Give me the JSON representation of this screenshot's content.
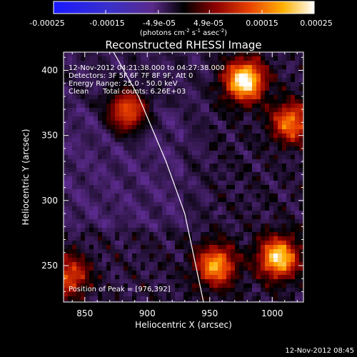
{
  "colorbar": {
    "ticks": [
      "-0.00025",
      "-0.00015",
      "-4.9e-05",
      "4.9e-05",
      "0.00015",
      "0.00025"
    ],
    "units_main": "(photons cm",
    "units_sup1": "-2",
    "units_mid1": " s",
    "units_sup2": "-1",
    "units_mid2": " asec",
    "units_sup3": "-2",
    "units_end": ")",
    "range": [
      -0.00025,
      0.00025
    ]
  },
  "chart_data": {
    "type": "heatmap",
    "title": "Reconstructed RHESSI Image",
    "xlabel": "Heliocentric X (arcsec)",
    "ylabel": "Heliocentric Y (arcsec)",
    "xlim": [
      833,
      1025
    ],
    "ylim": [
      222,
      414
    ],
    "xticks": [
      850,
      900,
      950,
      1000
    ],
    "yticks": [
      250,
      300,
      350,
      400
    ],
    "annotations": [
      "12-Nov-2012 04:21:38.000 to 04:27:38.000",
      "Detectors: 3F 5F 6F 7F 8F 9F, Att 0",
      "Energy Range: 25.0 - 50.0 keV",
      "Clean",
      "Total counts: 6.26E+03",
      "Position of Peak = [976,392]"
    ],
    "peak": [
      976,
      392
    ],
    "hot_sources": [
      {
        "x": 978,
        "y": 392,
        "value": 0.00025
      },
      {
        "x": 1005,
        "y": 256,
        "value": 0.00022
      },
      {
        "x": 955,
        "y": 250,
        "value": 0.00018
      },
      {
        "x": 1015,
        "y": 360,
        "value": 0.00016
      },
      {
        "x": 884,
        "y": 368,
        "value": 0.00015
      },
      {
        "x": 838,
        "y": 242,
        "value": 0.00013
      }
    ],
    "limb_curve": [
      [
        873,
        414
      ],
      [
        893,
        380
      ],
      [
        915,
        330
      ],
      [
        930,
        290
      ],
      [
        945,
        222
      ]
    ]
  },
  "footer": {
    "timestamp": "12-Nov-2012 08:45"
  }
}
